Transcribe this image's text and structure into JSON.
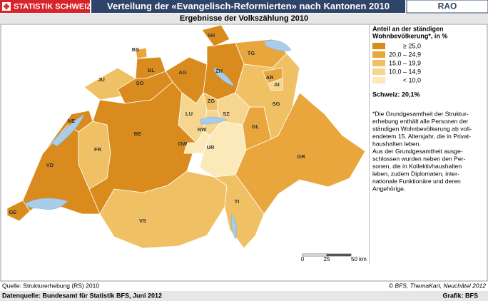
{
  "header": {
    "badge": "STATISTIK SCHWEIZ",
    "title": "Verteilung der «Evangelisch-Reformierten» nach Kantonen 2010",
    "tag": "RAO"
  },
  "subtitle": "Ergebnisse der Volkszählung 2010",
  "legend": {
    "title": [
      "Anteil an der ständigen",
      "Wohnbevölkerung*, in %"
    ],
    "classes": [
      {
        "label": "≥ 25,0",
        "color": "#d98b1e"
      },
      {
        "label": "20,0 – 24,9",
        "color": "#e8a63c"
      },
      {
        "label": "15,0 – 19,9",
        "color": "#f0c064"
      },
      {
        "label": "10,0 – 14,9",
        "color": "#f6d58f"
      },
      {
        "label": "< 10,0",
        "color": "#fbe9b9"
      }
    ]
  },
  "switzerland": "Schweiz: 20,1%",
  "note": [
    "*Die Grundgesamtheit der Struktur-",
    "erhebung enthält alle Personen der",
    "ständigen Wohnbevölkerung ab voll-",
    "endetem 15. Altersjahr, die in Privat-",
    "haushalten leben.",
    "Aus der Grundgesamtheit ausge-",
    "schlossen wurden neben den Per-",
    "sonen, die in Kollektivhaushalten",
    "leben, zudem Diplomaten, inter-",
    "nationale Funktionäre und deren",
    "Angehörige."
  ],
  "scale": [
    "0",
    "25",
    "50 km"
  ],
  "cantons": [
    {
      "label": "GE",
      "color": "#d98b1e"
    },
    {
      "label": "VD",
      "color": "#d98b1e"
    },
    {
      "label": "NE",
      "color": "#d98b1e"
    },
    {
      "label": "JU",
      "color": "#f0c064"
    },
    {
      "label": "BS",
      "color": "#e8a63c"
    },
    {
      "label": "BL",
      "color": "#d98b1e"
    },
    {
      "label": "SO",
      "color": "#d98b1e"
    },
    {
      "label": "FR",
      "color": "#f0c064"
    },
    {
      "label": "BE",
      "color": "#d98b1e"
    },
    {
      "label": "VS",
      "color": "#f0c064"
    },
    {
      "label": "AG",
      "color": "#d98b1e"
    },
    {
      "label": "ZH",
      "color": "#d98b1e"
    },
    {
      "label": "SH",
      "color": "#d98b1e"
    },
    {
      "label": "TG",
      "color": "#e8a63c"
    },
    {
      "label": "LU",
      "color": "#f6d58f"
    },
    {
      "label": "ZG",
      "color": "#f0c064"
    },
    {
      "label": "SZ",
      "color": "#f6d58f"
    },
    {
      "label": "NW",
      "color": "#f6d58f"
    },
    {
      "label": "OW",
      "color": "#fbe9b9"
    },
    {
      "label": "UR",
      "color": "#fbe9b9"
    },
    {
      "label": "GL",
      "color": "#e8a63c"
    },
    {
      "label": "SG",
      "color": "#f0c064"
    },
    {
      "label": "AR",
      "color": "#e8a63c"
    },
    {
      "label": "AI",
      "color": "#f6d58f"
    },
    {
      "label": "GR",
      "color": "#e8a63c"
    },
    {
      "label": "TI",
      "color": "#f0c064"
    }
  ],
  "footer": {
    "source": "Quelle: Strukturerhebung (RS) 2010",
    "copyright": "© BFS, ThemaKart, Neuchâtel 2012",
    "datasource": "Datenquelle: Bundesamt für Statistik BFS, Juni 2012",
    "credit": "Grafik: BFS"
  }
}
